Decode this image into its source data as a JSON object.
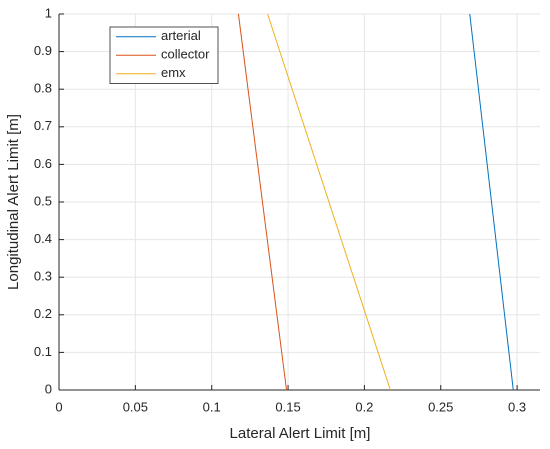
{
  "chart_data": {
    "type": "line",
    "xlabel": "Lateral Alert Limit [m]",
    "ylabel": "Longitudinal Alert Limit [m]",
    "xlim": [
      0,
      0.315
    ],
    "ylim": [
      0,
      1
    ],
    "xticks": [
      0,
      0.05,
      0.1,
      0.15,
      0.2,
      0.25,
      0.3
    ],
    "yticks": [
      0,
      0.1,
      0.2,
      0.3,
      0.4,
      0.5,
      0.6,
      0.7,
      0.8,
      0.9,
      1
    ],
    "grid": true,
    "legend": "upper-left",
    "series": [
      {
        "name": "arterial",
        "color": "#0072BD",
        "x": [
          0.2975,
          0.269
        ],
        "values": [
          0,
          1
        ]
      },
      {
        "name": "collector",
        "color": "#D95319",
        "x": [
          0.149,
          0.1175
        ],
        "values": [
          0,
          1
        ]
      },
      {
        "name": "emx",
        "color": "#EDB120",
        "x": [
          0.217,
          0.1366
        ],
        "values": [
          0,
          1
        ]
      }
    ]
  }
}
